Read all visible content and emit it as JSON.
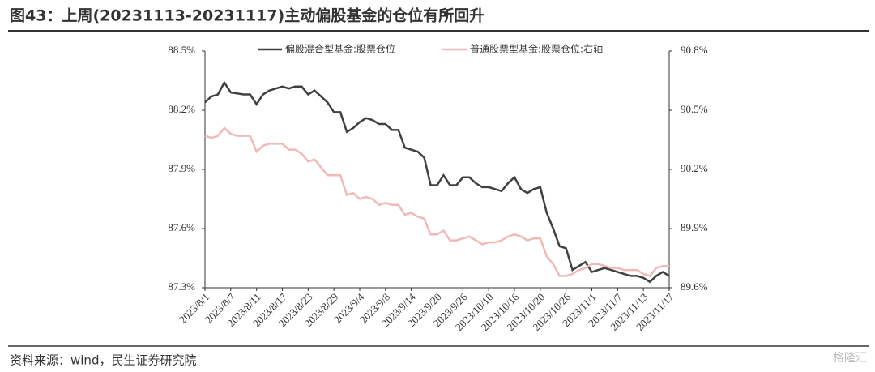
{
  "header": {
    "title": "图43：上周(20231113-20231117)主动偏股基金的仓位有所回升"
  },
  "footer": {
    "source": "资料来源：wind，民生证券研究院",
    "watermark": "格隆汇"
  },
  "chart_data": {
    "type": "line",
    "categories": [
      "2023/8/1",
      null,
      null,
      null,
      "2023/8/7",
      null,
      null,
      null,
      "2023/8/11",
      null,
      null,
      null,
      "2023/8/17",
      null,
      null,
      null,
      "2023/8/23",
      null,
      null,
      null,
      "2023/8/29",
      null,
      null,
      null,
      "2023/9/4",
      null,
      null,
      null,
      "2023/9/8",
      null,
      null,
      null,
      "2023/9/14",
      null,
      null,
      null,
      "2023/9/20",
      null,
      null,
      null,
      "2023/9/26",
      null,
      null,
      null,
      "2023/10/10",
      null,
      null,
      null,
      "2023/10/16",
      null,
      null,
      null,
      "2023/10/20",
      null,
      null,
      null,
      "2023/10/26",
      null,
      null,
      null,
      "2023/11/1",
      null,
      null,
      null,
      "2023/11/7",
      null,
      null,
      null,
      "2023/11/13",
      null,
      null,
      null,
      "2023/11/17"
    ],
    "series": [
      {
        "name": "偏股混合型基金:股票仓位",
        "color": "#404040",
        "axis": "y",
        "values": [
          88.24,
          88.27,
          88.28,
          88.34,
          88.29,
          88.285,
          88.28,
          88.28,
          88.23,
          88.28,
          88.3,
          88.31,
          88.32,
          88.31,
          88.32,
          88.32,
          88.28,
          88.3,
          88.27,
          88.24,
          88.19,
          88.19,
          88.09,
          88.11,
          88.14,
          88.16,
          88.15,
          88.13,
          88.13,
          88.1,
          88.1,
          88.01,
          88.0,
          87.99,
          87.96,
          87.82,
          87.82,
          87.87,
          87.82,
          87.82,
          87.86,
          87.86,
          87.83,
          87.81,
          87.81,
          87.8,
          87.79,
          87.83,
          87.86,
          87.8,
          87.78,
          87.8,
          87.81,
          87.68,
          87.6,
          87.51,
          87.5,
          87.39,
          87.41,
          87.43,
          87.38,
          87.39,
          87.4,
          87.39,
          87.38,
          87.37,
          87.36,
          87.36,
          87.35,
          87.33,
          87.36,
          87.38,
          87.36
        ]
      },
      {
        "name": "普通股票型基金:股票仓位:右轴",
        "color": "#f0b9b9",
        "axis": "y2",
        "values": [
          90.37,
          90.36,
          90.37,
          90.41,
          90.38,
          90.37,
          90.37,
          90.37,
          90.29,
          90.32,
          90.33,
          90.33,
          90.33,
          90.3,
          90.3,
          90.28,
          90.24,
          90.25,
          90.21,
          90.17,
          90.17,
          90.17,
          90.07,
          90.08,
          90.05,
          90.06,
          90.05,
          90.02,
          90.03,
          90.02,
          90.02,
          89.97,
          89.98,
          89.96,
          89.95,
          89.87,
          89.87,
          89.89,
          89.84,
          89.84,
          89.85,
          89.86,
          89.84,
          89.82,
          89.83,
          89.83,
          89.84,
          89.86,
          89.87,
          89.86,
          89.84,
          89.85,
          89.85,
          89.76,
          89.72,
          89.66,
          89.66,
          89.67,
          89.69,
          89.7,
          89.72,
          89.72,
          89.71,
          89.7,
          89.7,
          89.69,
          89.69,
          89.69,
          89.67,
          89.66,
          89.7,
          89.71,
          89.71
        ]
      }
    ],
    "ylim": [
      87.3,
      88.5
    ],
    "yticks": [
      {
        "value": 87.3,
        "label": "87.3%"
      },
      {
        "value": 87.6,
        "label": "87.6%"
      },
      {
        "value": 87.9,
        "label": "87.9%"
      },
      {
        "value": 88.2,
        "label": "88.2%"
      },
      {
        "value": 88.5,
        "label": "88.5%"
      }
    ],
    "y2lim": [
      89.6,
      90.8
    ],
    "y2ticks": [
      {
        "value": 89.6,
        "label": "89.6%"
      },
      {
        "value": 89.9,
        "label": "89.9%"
      },
      {
        "value": 90.2,
        "label": "90.2%"
      },
      {
        "value": 90.5,
        "label": "90.5%"
      },
      {
        "value": 90.8,
        "label": "90.8%"
      }
    ],
    "legend": "top"
  }
}
